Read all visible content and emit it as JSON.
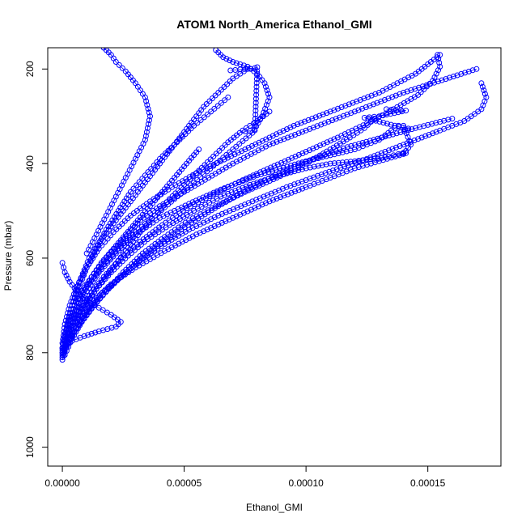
{
  "chart_data": {
    "type": "scatter",
    "title": "ATOM1 North_America Ethanol_GMI",
    "xlabel": "Ethanol_GMI",
    "ylabel": "Pressure (mbar)",
    "xlim": [
      -6e-06,
      0.00018
    ],
    "ylim": [
      1040,
      155
    ],
    "y_reversed": true,
    "x_ticks": [
      0,
      5e-05,
      0.0001,
      0.00015
    ],
    "x_tick_labels": [
      "0.00000",
      "0.00005",
      "0.00010",
      "0.00015"
    ],
    "y_ticks": [
      200,
      400,
      600,
      800,
      1000
    ],
    "y_tick_labels": [
      "200",
      "400",
      "600",
      "800",
      "1000"
    ],
    "grid": false,
    "marker": "open-circle",
    "color": "#0000ff",
    "series": [
      {
        "x": [
          0,
          2e-06,
          5e-06,
          8e-06,
          1.2e-05,
          1.8e-05,
          2.5e-05,
          3.2e-05,
          4e-05,
          5e-05,
          6e-05,
          7e-05,
          8.5e-05,
          0.0001,
          0.00012,
          0.00014,
          0.00017
        ],
        "y": [
          810,
          770,
          720,
          680,
          640,
          600,
          560,
          520,
          490,
          460,
          430,
          400,
          360,
          330,
          290,
          250,
          200
        ]
      },
      {
        "x": [
          0,
          3e-06,
          6e-06,
          1e-05,
          1.5e-05,
          2.2e-05,
          3e-05,
          4e-05,
          5.2e-05,
          6.5e-05,
          8e-05,
          0.0001,
          0.00012,
          0.00013,
          0.000135,
          0.000138
        ],
        "y": [
          800,
          760,
          710,
          670,
          630,
          590,
          550,
          515,
          485,
          455,
          425,
          395,
          370,
          350,
          330,
          320
        ]
      },
      {
        "x": [
          0,
          2e-06,
          4e-06,
          7e-06,
          1.1e-05,
          1.6e-05,
          2.2e-05,
          2.8e-05,
          3.4e-05,
          4e-05,
          4.6e-05,
          5.2e-05,
          5.8e-05,
          6.4e-05,
          7e-05,
          7.6e-05
        ],
        "y": [
          790,
          750,
          700,
          650,
          600,
          560,
          520,
          480,
          440,
          400,
          360,
          320,
          280,
          250,
          220,
          200
        ]
      },
      {
        "x": [
          0,
          4e-06,
          8e-06,
          1.3e-05,
          2e-05,
          3e-05,
          4.2e-05,
          5.5e-05,
          7e-05,
          8.5e-05,
          0.0001,
          0.00011,
          0.00012,
          0.00013,
          0.00014,
          0.000143,
          0.00014
        ],
        "y": [
          805,
          765,
          725,
          690,
          655,
          620,
          585,
          550,
          515,
          480,
          450,
          430,
          410,
          395,
          380,
          360,
          320
        ]
      },
      {
        "x": [
          0,
          1e-06,
          3e-06,
          6e-06,
          1e-05,
          1.5e-05,
          2.1e-05,
          2.8e-05,
          3.6e-05,
          4.5e-05,
          5.5e-05,
          6.5e-05,
          7.5e-05,
          8.5e-05,
          9.5e-05,
          0.00011,
          0.00013,
          0.000145,
          0.000155
        ],
        "y": [
          780,
          740,
          700,
          660,
          620,
          580,
          545,
          510,
          480,
          450,
          420,
          395,
          370,
          345,
          320,
          290,
          250,
          210,
          170
        ]
      },
      {
        "x": [
          1e-06,
          5e-06,
          1e-05,
          1.6e-05,
          2.4e-05,
          3.2e-05,
          4.2e-05,
          5.2e-05,
          6.4e-05,
          7.8e-05,
          9.2e-05,
          0.000108,
          0.000125,
          0.00014,
          0.000155,
          0.000165,
          0.000172,
          0.000174,
          0.000172
        ],
        "y": [
          795,
          755,
          715,
          675,
          640,
          605,
          570,
          540,
          510,
          480,
          450,
          420,
          390,
          360,
          330,
          310,
          285,
          260,
          230
        ]
      },
      {
        "x": [
          0,
          2e-06,
          5e-06,
          9e-06,
          1.4e-05,
          2e-05,
          2.6e-05,
          3.2e-05,
          3.8e-05,
          4.4e-05,
          5e-05,
          5.6e-05,
          6.2e-05,
          6.8e-05,
          7.4e-05,
          8e-05,
          8.5e-05
        ],
        "y": [
          815,
          780,
          745,
          705,
          665,
          625,
          585,
          545,
          510,
          475,
          445,
          415,
          385,
          355,
          330,
          310,
          290
        ]
      },
      {
        "x": [
          0,
          3e-06,
          7e-06,
          1.2e-05,
          1.8e-05,
          2.5e-05,
          3.3e-05,
          4.2e-05,
          5.2e-05,
          6.3e-05,
          7.5e-05,
          8.8e-05,
          0.0001,
          0.00011,
          0.000118,
          0.000124,
          0.000128
        ],
        "y": [
          800,
          770,
          740,
          705,
          670,
          630,
          590,
          555,
          520,
          490,
          460,
          430,
          400,
          370,
          345,
          325,
          305
        ]
      },
      {
        "x": [
          0,
          1e-06,
          3e-06,
          5e-06,
          8e-06,
          1.2e-05,
          1.6e-05,
          2.1e-05,
          2.6e-05,
          3.1e-05,
          3.6e-05,
          4.1e-05,
          4.6e-05,
          5.1e-05,
          5.6e-05
        ],
        "y": [
          790,
          760,
          730,
          700,
          670,
          640,
          610,
          580,
          550,
          520,
          490,
          460,
          430,
          400,
          370
        ]
      },
      {
        "x": [
          0,
          4e-06,
          9e-06,
          1.5e-05,
          2.2e-05,
          2.4e-05,
          2e-05,
          1.5e-05,
          1e-05,
          6e-06,
          3e-06,
          1e-06,
          0
        ],
        "y": [
          790,
          775,
          765,
          755,
          745,
          735,
          720,
          705,
          690,
          670,
          650,
          630,
          610
        ]
      },
      {
        "x": [
          0,
          2e-06,
          5e-06,
          9e-06,
          1.4e-05,
          2e-05,
          2.7e-05,
          3.5e-05,
          4.4e-05,
          5.4e-05,
          6.5e-05,
          7.7e-05,
          8.9e-05,
          0.0001,
          0.00011,
          0.00012,
          0.000128,
          0.000134,
          0.000138,
          0.000141,
          0.00014
        ],
        "y": [
          795,
          765,
          735,
          700,
          665,
          630,
          595,
          560,
          530,
          500,
          470,
          445,
          425,
          410,
          400,
          395,
          390,
          385,
          380,
          378,
          377
        ]
      },
      {
        "x": [
          5e-06,
          1e-05,
          1.6e-05,
          2.3e-05,
          3e-05,
          3.8e-05,
          4.6e-05,
          5.4e-05,
          6.2e-05,
          7e-05,
          7.8e-05,
          8.2e-05,
          8.5e-05,
          8.3e-05,
          8e-05,
          7.6e-05,
          7e-05,
          6.6e-05,
          6.3e-05
        ],
        "y": [
          700,
          660,
          620,
          580,
          545,
          510,
          475,
          440,
          405,
          370,
          335,
          300,
          260,
          230,
          210,
          195,
          185,
          175,
          160
        ]
      },
      {
        "x": [
          1e-05,
          1.4e-05,
          1.8e-05,
          2.2e-05,
          2.6e-05,
          3e-05,
          3.4e-05,
          3.6e-05,
          3.4e-05,
          3e-05,
          2.6e-05,
          2.2e-05,
          2e-05,
          1.8e-05,
          1.6e-05
        ],
        "y": [
          590,
          550,
          510,
          470,
          430,
          390,
          350,
          300,
          260,
          230,
          205,
          185,
          170,
          160,
          150
        ]
      },
      {
        "x": [
          2e-06,
          6e-06,
          1.1e-05,
          1.7e-05,
          2.4e-05,
          3.2e-05,
          4.1e-05,
          5.1e-05,
          6.2e-05,
          7.4e-05,
          8.7e-05,
          0.0001,
          0.000113,
          0.000125,
          0.000136,
          0.000146,
          0.000152,
          0.000155,
          0.000154
        ],
        "y": [
          760,
          720,
          680,
          640,
          600,
          565,
          530,
          495,
          465,
          435,
          405,
          375,
          345,
          315,
          285,
          255,
          225,
          195,
          170
        ]
      },
      {
        "x": [
          1e-06,
          4e-06,
          8e-06,
          1.3e-05,
          1.9e-05,
          2.6e-05,
          3.4e-05,
          4.3e-05,
          5.3e-05,
          6.4e-05,
          7.6e-05,
          8.9e-05,
          0.000103,
          0.000117,
          0.000131,
          0.000145,
          0.00016
        ],
        "y": [
          805,
          770,
          735,
          700,
          665,
          630,
          595,
          560,
          525,
          490,
          455,
          420,
          390,
          365,
          345,
          325,
          305
        ]
      },
      {
        "x": [
          2e-06,
          4e-06,
          7e-06,
          1e-05,
          1.4e-05,
          1.8e-05,
          2.3e-05,
          2.8e-05,
          3.4e-05,
          4e-05,
          4.7e-05,
          5.4e-05,
          6.1e-05,
          6.8e-05
        ],
        "y": [
          740,
          700,
          660,
          620,
          580,
          540,
          500,
          460,
          425,
          390,
          355,
          320,
          290,
          260
        ]
      },
      {
        "x": [
          6.9e-05,
          7.1e-05,
          7.3e-05,
          7.5e-05,
          7.7e-05,
          7.9e-05,
          8e-05,
          7.9e-05,
          7.7e-05,
          7.5e-05
        ],
        "y": [
          203,
          202,
          201,
          200,
          199,
          198,
          196,
          330,
          331,
          332
        ]
      },
      {
        "x": [
          0.000133,
          0.000135,
          0.000137,
          0.000139,
          0.000141,
          0.00013,
          0.000128,
          0.000126,
          0.000124,
          0.000138,
          0.00014,
          0.000142
        ],
        "y": [
          285,
          286,
          287,
          287,
          288,
          300,
          301,
          302,
          303,
          322,
          324,
          326
        ]
      }
    ]
  }
}
